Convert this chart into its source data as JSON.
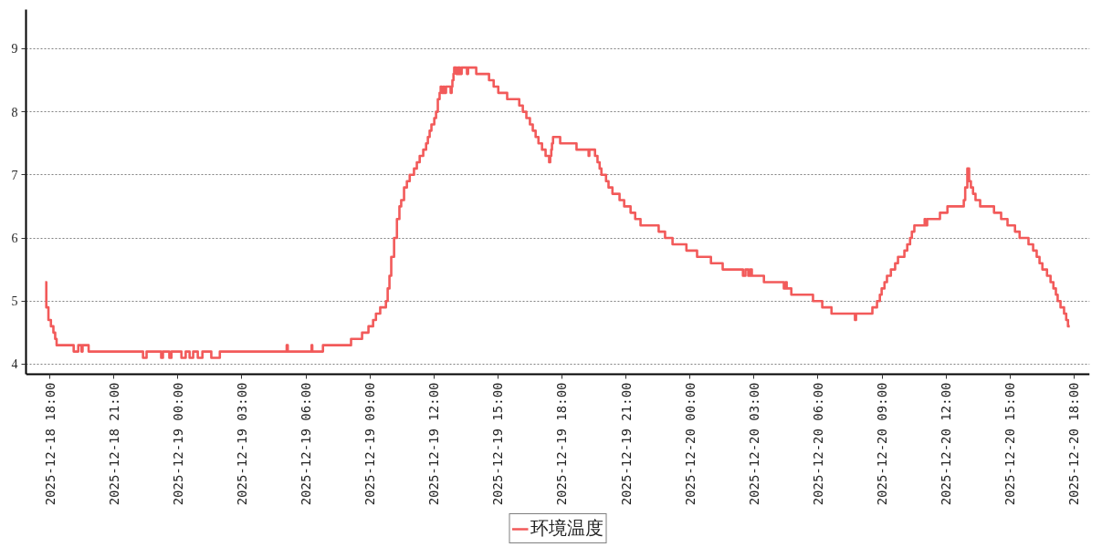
{
  "chart_data": {
    "type": "step",
    "x": [
      "2025-12-18T17:47",
      "2025-12-18T17:50",
      "2025-12-18T17:56",
      "2025-12-18T18:03",
      "2025-12-18T18:10",
      "2025-12-18T18:15",
      "2025-12-18T18:19",
      "2025-12-18T19:07",
      "2025-12-18T19:20",
      "2025-12-18T19:29",
      "2025-12-18T19:32",
      "2025-12-18T19:49",
      "2025-12-18T22:22",
      "2025-12-18T22:32",
      "2025-12-18T23:13",
      "2025-12-18T23:18",
      "2025-12-18T23:36",
      "2025-12-18T23:42",
      "2025-12-19T00:10",
      "2025-12-19T00:22",
      "2025-12-19T00:33",
      "2025-12-19T00:43",
      "2025-12-19T00:56",
      "2025-12-19T01:09",
      "2025-12-19T01:34",
      "2025-12-19T01:58",
      "2025-12-19T05:06",
      "2025-12-19T05:09",
      "2025-12-19T06:16",
      "2025-12-19T06:18",
      "2025-12-19T06:48",
      "2025-12-19T08:07",
      "2025-12-19T08:38",
      "2025-12-19T08:56",
      "2025-12-19T09:09",
      "2025-12-19T09:17",
      "2025-12-19T09:29",
      "2025-12-19T09:45",
      "2025-12-19T09:50",
      "2025-12-19T09:55",
      "2025-12-19T10:00",
      "2025-12-19T10:08",
      "2025-12-19T10:16",
      "2025-12-19T10:23",
      "2025-12-19T10:28",
      "2025-12-19T10:36",
      "2025-12-19T10:44",
      "2025-12-19T10:52",
      "2025-12-19T11:04",
      "2025-12-19T11:12",
      "2025-12-19T11:20",
      "2025-12-19T11:30",
      "2025-12-19T11:38",
      "2025-12-19T11:43",
      "2025-12-19T11:48",
      "2025-12-19T11:53",
      "2025-12-19T12:01",
      "2025-12-19T12:06",
      "2025-12-19T12:11",
      "2025-12-19T12:16",
      "2025-12-19T12:19",
      "2025-12-19T12:22",
      "2025-12-19T12:27",
      "2025-12-19T12:29",
      "2025-12-19T12:34",
      "2025-12-19T12:47",
      "2025-12-19T12:50",
      "2025-12-19T12:52",
      "2025-12-19T12:55",
      "2025-12-19T12:57",
      "2025-12-19T13:03",
      "2025-12-19T13:08",
      "2025-12-19T13:13",
      "2025-12-19T13:18",
      "2025-12-19T13:33",
      "2025-12-19T13:36",
      "2025-12-19T13:59",
      "2025-12-19T14:35",
      "2025-12-19T14:48",
      "2025-12-19T15:01",
      "2025-12-19T15:26",
      "2025-12-19T16:00",
      "2025-12-19T16:10",
      "2025-12-19T16:20",
      "2025-12-19T16:30",
      "2025-12-19T16:38",
      "2025-12-19T16:46",
      "2025-12-19T16:54",
      "2025-12-19T17:04",
      "2025-12-19T17:14",
      "2025-12-19T17:24",
      "2025-12-19T17:27",
      "2025-12-19T17:30",
      "2025-12-19T17:32",
      "2025-12-19T17:35",
      "2025-12-19T17:55",
      "2025-12-19T18:41",
      "2025-12-19T19:15",
      "2025-12-19T19:17",
      "2025-12-19T19:33",
      "2025-12-19T19:40",
      "2025-12-19T19:46",
      "2025-12-19T19:51",
      "2025-12-19T20:04",
      "2025-12-19T20:11",
      "2025-12-19T20:22",
      "2025-12-19T20:42",
      "2025-12-19T20:55",
      "2025-12-19T21:13",
      "2025-12-19T21:26",
      "2025-12-19T21:41",
      "2025-12-19T22:32",
      "2025-12-19T22:50",
      "2025-12-19T23:11",
      "2025-12-19T23:50",
      "2025-12-20T00:20",
      "2025-12-20T00:59",
      "2025-12-20T01:32",
      "2025-12-20T02:29",
      "2025-12-20T02:36",
      "2025-12-20T02:44",
      "2025-12-20T02:49",
      "2025-12-20T02:54",
      "2025-12-20T03:28",
      "2025-12-20T04:24",
      "2025-12-20T04:29",
      "2025-12-20T04:32",
      "2025-12-20T04:45",
      "2025-12-20T05:46",
      "2025-12-20T06:12",
      "2025-12-20T06:38",
      "2025-12-20T07:44",
      "2025-12-20T07:47",
      "2025-12-20T08:33",
      "2025-12-20T08:46",
      "2025-12-20T08:54",
      "2025-12-20T08:59",
      "2025-12-20T09:07",
      "2025-12-20T09:14",
      "2025-12-20T09:25",
      "2025-12-20T09:37",
      "2025-12-20T09:45",
      "2025-12-20T10:03",
      "2025-12-20T10:11",
      "2025-12-20T10:19",
      "2025-12-20T10:24",
      "2025-12-20T10:31",
      "2025-12-20T11:00",
      "2025-12-20T11:02",
      "2025-12-20T11:07",
      "2025-12-20T11:43",
      "2025-12-20T12:04",
      "2025-12-20T12:50",
      "2025-12-20T12:54",
      "2025-12-20T13:00",
      "2025-12-20T13:05",
      "2025-12-20T13:10",
      "2025-12-20T13:16",
      "2025-12-20T13:23",
      "2025-12-20T13:36",
      "2025-12-20T14:15",
      "2025-12-20T14:35",
      "2025-12-20T14:53",
      "2025-12-20T15:14",
      "2025-12-20T15:27",
      "2025-12-20T15:52",
      "2025-12-20T16:05",
      "2025-12-20T16:15",
      "2025-12-20T16:23",
      "2025-12-20T16:31",
      "2025-12-20T16:44",
      "2025-12-20T16:54",
      "2025-12-20T17:02",
      "2025-12-20T17:09",
      "2025-12-20T17:14",
      "2025-12-20T17:22",
      "2025-12-20T17:32",
      "2025-12-20T17:38",
      "2025-12-20T17:43",
      "2025-12-20T17:48"
    ],
    "series": [
      {
        "name": "环境温度",
        "color": "#f25a5a",
        "values": [
          5.3,
          4.9,
          4.7,
          4.6,
          4.5,
          4.4,
          4.3,
          4.2,
          4.3,
          4.2,
          4.3,
          4.2,
          4.1,
          4.2,
          4.1,
          4.2,
          4.1,
          4.2,
          4.1,
          4.2,
          4.1,
          4.2,
          4.1,
          4.2,
          4.1,
          4.2,
          4.3,
          4.2,
          4.3,
          4.2,
          4.3,
          4.4,
          4.5,
          4.6,
          4.7,
          4.8,
          4.9,
          5.0,
          5.2,
          5.4,
          5.7,
          6.0,
          6.3,
          6.5,
          6.6,
          6.8,
          6.9,
          7.0,
          7.1,
          7.2,
          7.3,
          7.4,
          7.5,
          7.6,
          7.7,
          7.8,
          7.9,
          8.0,
          8.2,
          8.3,
          8.4,
          8.3,
          8.4,
          8.3,
          8.4,
          8.3,
          8.4,
          8.5,
          8.6,
          8.7,
          8.6,
          8.7,
          8.6,
          8.7,
          8.6,
          8.7,
          8.6,
          8.5,
          8.4,
          8.3,
          8.2,
          8.1,
          8.0,
          7.9,
          7.8,
          7.7,
          7.6,
          7.5,
          7.4,
          7.3,
          7.2,
          7.3,
          7.4,
          7.5,
          7.6,
          7.5,
          7.4,
          7.3,
          7.4,
          7.3,
          7.2,
          7.1,
          7.0,
          6.9,
          6.8,
          6.7,
          6.6,
          6.5,
          6.4,
          6.3,
          6.2,
          6.1,
          6.0,
          5.9,
          5.8,
          5.7,
          5.6,
          5.5,
          5.4,
          5.5,
          5.4,
          5.5,
          5.4,
          5.3,
          5.2,
          5.3,
          5.2,
          5.1,
          5.0,
          4.9,
          4.8,
          4.7,
          4.8,
          4.9,
          5.0,
          5.1,
          5.2,
          5.3,
          5.4,
          5.5,
          5.6,
          5.7,
          5.8,
          5.9,
          6.0,
          6.1,
          6.2,
          6.3,
          6.2,
          6.3,
          6.4,
          6.5,
          6.6,
          6.8,
          7.1,
          6.9,
          6.8,
          6.7,
          6.6,
          6.5,
          6.4,
          6.3,
          6.2,
          6.1,
          6.0,
          5.9,
          5.8,
          5.7,
          5.6,
          5.5,
          5.4,
          5.3,
          5.2,
          5.1,
          5.0,
          4.9,
          4.8,
          4.7,
          4.6,
          4.6
        ]
      }
    ],
    "xlim": [
      "2025-12-18T16:53",
      "2025-12-20T18:44"
    ],
    "xticks": [
      {
        "value": "2025-12-18T18:00",
        "label": "2025-12-18 18:00"
      },
      {
        "value": "2025-12-18T21:00",
        "label": "2025-12-18 21:00"
      },
      {
        "value": "2025-12-19T00:00",
        "label": "2025-12-19 00:00"
      },
      {
        "value": "2025-12-19T03:00",
        "label": "2025-12-19 03:00"
      },
      {
        "value": "2025-12-19T06:00",
        "label": "2025-12-19 06:00"
      },
      {
        "value": "2025-12-19T09:00",
        "label": "2025-12-19 09:00"
      },
      {
        "value": "2025-12-19T12:00",
        "label": "2025-12-19 12:00"
      },
      {
        "value": "2025-12-19T15:00",
        "label": "2025-12-19 15:00"
      },
      {
        "value": "2025-12-19T18:00",
        "label": "2025-12-19 18:00"
      },
      {
        "value": "2025-12-19T21:00",
        "label": "2025-12-19 21:00"
      },
      {
        "value": "2025-12-20T00:00",
        "label": "2025-12-20 00:00"
      },
      {
        "value": "2025-12-20T03:00",
        "label": "2025-12-20 03:00"
      },
      {
        "value": "2025-12-20T06:00",
        "label": "2025-12-20 06:00"
      },
      {
        "value": "2025-12-20T09:00",
        "label": "2025-12-20 09:00"
      },
      {
        "value": "2025-12-20T12:00",
        "label": "2025-12-20 12:00"
      },
      {
        "value": "2025-12-20T15:00",
        "label": "2025-12-20 15:00"
      },
      {
        "value": "2025-12-20T18:00",
        "label": "2025-12-20 18:00"
      }
    ],
    "ylim": [
      3.84,
      9.62
    ],
    "yticks": [
      4,
      5,
      6,
      7,
      8,
      9
    ],
    "grid": "y",
    "legend": "bottom"
  }
}
